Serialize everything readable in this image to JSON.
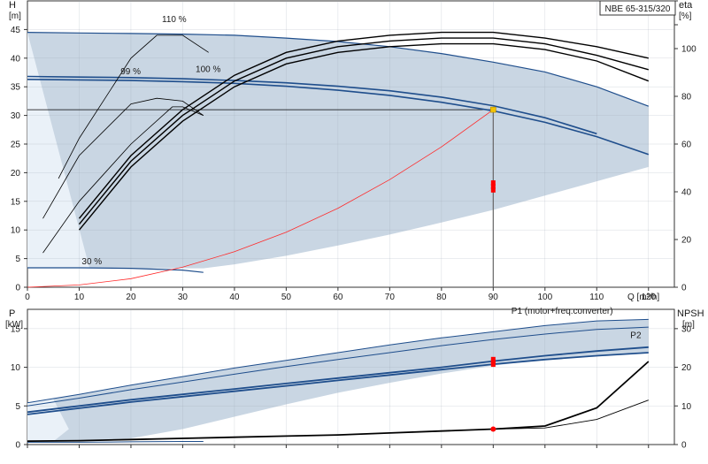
{
  "chart_data": [
    {
      "type": "line",
      "title": "",
      "model_label": "NBE 65-315/320",
      "xlabel": "Q [m³/h]",
      "ylabel_left": "H [m]",
      "ylabel_left_symbol": "H",
      "ylabel_left_unit": "[m]",
      "ylabel_right": "eta [%]",
      "ylabel_right_symbol": "eta",
      "ylabel_right_unit": "[%]",
      "xlim": [
        0,
        125
      ],
      "ylim_left": [
        0,
        50
      ],
      "ylim_right": [
        0,
        120
      ],
      "x_ticks": [
        0,
        10,
        20,
        30,
        40,
        50,
        60,
        70,
        80,
        90,
        100,
        110,
        120
      ],
      "y_ticks_left": [
        0,
        5,
        10,
        15,
        20,
        25,
        30,
        35,
        40,
        45
      ],
      "y_ticks_right": [
        0,
        20,
        40,
        60,
        80,
        100
      ],
      "grid": true,
      "duty_point": {
        "Q": 90,
        "H": 31
      },
      "operating_area_upper": [
        [
          0,
          44.5
        ],
        [
          6,
          44.5
        ],
        [
          10,
          44.4
        ],
        [
          20,
          44.3
        ],
        [
          30,
          44.2
        ],
        [
          40,
          44.0
        ],
        [
          50,
          43.5
        ],
        [
          60,
          42.9
        ],
        [
          70,
          42.0
        ],
        [
          80,
          40.8
        ],
        [
          90,
          39.3
        ],
        [
          100,
          37.6
        ],
        [
          110,
          35.0
        ],
        [
          120,
          31.6
        ],
        [
          120,
          21
        ],
        [
          110,
          18.5
        ],
        [
          100,
          16
        ],
        [
          90,
          13.5
        ],
        [
          80,
          11.3
        ],
        [
          70,
          9.2
        ],
        [
          60,
          7.3
        ],
        [
          50,
          5.5
        ],
        [
          40,
          4.0
        ],
        [
          34,
          3.3
        ],
        [
          12,
          3.3
        ]
      ],
      "series": [
        {
          "name": "110 %",
          "role": "head",
          "color": "#1f4e8c",
          "points": [
            [
              0,
              44.5
            ],
            [
              10,
              44.4
            ],
            [
              20,
              44.3
            ],
            [
              30,
              44.2
            ],
            [
              40,
              44.0
            ],
            [
              50,
              43.5
            ],
            [
              60,
              42.9
            ],
            [
              70,
              42.0
            ],
            [
              80,
              40.8
            ],
            [
              90,
              39.3
            ],
            [
              100,
              37.6
            ],
            [
              110,
              35.0
            ],
            [
              120,
              31.6
            ]
          ]
        },
        {
          "name": "99 %",
          "role": "head",
          "color": "#1f4e8c",
          "points": [
            [
              0,
              36.3
            ],
            [
              10,
              36.2
            ],
            [
              20,
              36.1
            ],
            [
              30,
              35.9
            ],
            [
              40,
              35.6
            ],
            [
              50,
              35.1
            ],
            [
              60,
              34.4
            ],
            [
              70,
              33.5
            ],
            [
              80,
              32.3
            ],
            [
              90,
              30.8
            ],
            [
              100,
              28.8
            ],
            [
              110,
              26.3
            ],
            [
              120,
              23.2
            ]
          ]
        },
        {
          "name": "100 %",
          "role": "head",
          "color": "#1f4e8c",
          "points": [
            [
              0,
              36.8
            ],
            [
              10,
              36.7
            ],
            [
              20,
              36.6
            ],
            [
              30,
              36.4
            ],
            [
              40,
              36.1
            ],
            [
              50,
              35.7
            ],
            [
              60,
              35.1
            ],
            [
              70,
              34.3
            ],
            [
              80,
              33.2
            ],
            [
              90,
              31.7
            ],
            [
              100,
              29.6
            ],
            [
              110,
              26.8
            ]
          ]
        },
        {
          "name": "30 %",
          "role": "head",
          "color": "#1f4e8c",
          "points": [
            [
              0,
              3.4
            ],
            [
              10,
              3.4
            ],
            [
              20,
              3.3
            ],
            [
              30,
              3.0
            ],
            [
              34,
              2.6
            ]
          ]
        },
        {
          "name": "",
          "role": "system_curve",
          "color": "#ff2a2a",
          "points": [
            [
              0,
              0
            ],
            [
              10,
              0.4
            ],
            [
              20,
              1.5
            ],
            [
              30,
              3.5
            ],
            [
              40,
              6.2
            ],
            [
              50,
              9.6
            ],
            [
              60,
              13.8
            ],
            [
              70,
              18.8
            ],
            [
              80,
              24.5
            ],
            [
              90,
              31
            ]
          ]
        },
        {
          "name": "",
          "role": "efficiency",
          "color": "#000000",
          "points": [
            [
              10,
              12
            ],
            [
              20,
              23
            ],
            [
              30,
              31
            ],
            [
              40,
              37
            ],
            [
              50,
              41
            ],
            [
              60,
              43
            ],
            [
              70,
              44
            ],
            [
              80,
              44.5
            ],
            [
              90,
              44.5
            ],
            [
              100,
              43.5
            ],
            [
              110,
              42
            ],
            [
              120,
              40
            ]
          ]
        },
        {
          "name": "",
          "role": "efficiency",
          "color": "#000000",
          "points": [
            [
              10,
              10
            ],
            [
              20,
              21
            ],
            [
              30,
              29
            ],
            [
              40,
              35
            ],
            [
              50,
              39
            ],
            [
              60,
              41
            ],
            [
              70,
              42
            ],
            [
              80,
              42.5
            ],
            [
              90,
              42.5
            ],
            [
              100,
              41.5
            ],
            [
              110,
              39.5
            ],
            [
              120,
              36
            ]
          ]
        },
        {
          "name": "",
          "role": "efficiency",
          "color": "#000000",
          "points": [
            [
              10,
              11
            ],
            [
              20,
              22
            ],
            [
              30,
              30
            ],
            [
              40,
              36
            ],
            [
              50,
              40
            ],
            [
              60,
              42
            ],
            [
              70,
              43
            ],
            [
              80,
              43.5
            ],
            [
              90,
              43.5
            ],
            [
              100,
              42.5
            ],
            [
              110,
              40.5
            ],
            [
              120,
              38
            ]
          ]
        },
        {
          "name": "",
          "role": "efficiency",
          "color": "#000000",
          "points": [
            [
              3,
              12
            ],
            [
              10,
              23
            ],
            [
              20,
              32
            ],
            [
              25,
              33
            ],
            [
              30,
              32.5
            ],
            [
              34,
              30
            ]
          ]
        },
        {
          "name": "",
          "role": "efficiency",
          "color": "#000000",
          "points": [
            [
              3,
              6
            ],
            [
              10,
              15
            ],
            [
              20,
              25
            ],
            [
              28,
              31.5
            ],
            [
              30,
              31.5
            ],
            [
              34,
              30
            ]
          ]
        },
        {
          "name": "",
          "role": "efficiency",
          "color": "#000000",
          "points": [
            [
              6,
              19
            ],
            [
              10,
              26
            ],
            [
              20,
              40
            ],
            [
              25,
              44
            ],
            [
              30,
              44
            ],
            [
              35,
              41
            ]
          ]
        }
      ]
    },
    {
      "type": "line",
      "title": "",
      "xlabel": "",
      "ylabel_left": "P [kW]",
      "ylabel_left_symbol": "P",
      "ylabel_left_unit": "[kW]",
      "ylabel_right": "NPSH [m]",
      "ylabel_right_symbol": "NPSH",
      "ylabel_right_unit": "[m]",
      "xlim": [
        0,
        125
      ],
      "ylim_left": [
        0,
        17.5
      ],
      "ylim_right": [
        0,
        35
      ],
      "y_ticks_left": [
        0,
        5,
        10,
        15
      ],
      "y_ticks_right": [
        0,
        10,
        20,
        30
      ],
      "grid": true,
      "operating_area_upper": [
        [
          0,
          5.4
        ],
        [
          10,
          6.5
        ],
        [
          20,
          7.7
        ],
        [
          30,
          8.8
        ],
        [
          40,
          9.9
        ],
        [
          50,
          10.9
        ],
        [
          60,
          11.9
        ],
        [
          70,
          12.9
        ],
        [
          80,
          13.8
        ],
        [
          90,
          14.6
        ],
        [
          100,
          15.4
        ],
        [
          110,
          16.0
        ],
        [
          120,
          16.2
        ]
      ],
      "operating_area_lower": [
        [
          120,
          12.0
        ],
        [
          110,
          11.6
        ],
        [
          100,
          11.0
        ],
        [
          90,
          10.2
        ],
        [
          80,
          9.2
        ],
        [
          70,
          8.0
        ],
        [
          60,
          6.7
        ],
        [
          50,
          5.2
        ],
        [
          40,
          3.6
        ],
        [
          30,
          2.0
        ],
        [
          20,
          0.8
        ],
        [
          10,
          0.4
        ],
        [
          0,
          0.4
        ]
      ],
      "series": [
        {
          "name": "P1 (motor+freq.converter)",
          "role": "power",
          "color": "#1f4e8c",
          "points": [
            [
              0,
              5.4
            ],
            [
              10,
              6.5
            ],
            [
              20,
              7.7
            ],
            [
              30,
              8.8
            ],
            [
              40,
              9.9
            ],
            [
              50,
              10.9
            ],
            [
              60,
              11.9
            ],
            [
              70,
              12.9
            ],
            [
              80,
              13.8
            ],
            [
              90,
              14.6
            ],
            [
              100,
              15.4
            ],
            [
              110,
              16.0
            ],
            [
              120,
              16.2
            ]
          ]
        },
        {
          "name": "",
          "role": "power",
          "color": "#1f4e8c",
          "points": [
            [
              0,
              5.0
            ],
            [
              10,
              6.0
            ],
            [
              20,
              7.1
            ],
            [
              30,
              8.1
            ],
            [
              40,
              9.1
            ],
            [
              50,
              10.1
            ],
            [
              60,
              11.0
            ],
            [
              70,
              11.9
            ],
            [
              80,
              12.8
            ],
            [
              90,
              13.6
            ],
            [
              100,
              14.3
            ],
            [
              110,
              14.9
            ],
            [
              120,
              15.2
            ]
          ]
        },
        {
          "name": "P2",
          "role": "power",
          "color": "#1f4e8c",
          "points": [
            [
              0,
              4.2
            ],
            [
              10,
              5.0
            ],
            [
              20,
              5.8
            ],
            [
              30,
              6.5
            ],
            [
              40,
              7.2
            ],
            [
              50,
              7.9
            ],
            [
              60,
              8.6
            ],
            [
              70,
              9.3
            ],
            [
              80,
              10.0
            ],
            [
              90,
              10.8
            ],
            [
              100,
              11.5
            ],
            [
              110,
              12.1
            ],
            [
              120,
              12.6
            ]
          ]
        },
        {
          "name": "",
          "role": "power",
          "color": "#1f4e8c",
          "points": [
            [
              0,
              3.9
            ],
            [
              10,
              4.7
            ],
            [
              20,
              5.5
            ],
            [
              30,
              6.2
            ],
            [
              40,
              6.9
            ],
            [
              50,
              7.6
            ],
            [
              60,
              8.3
            ],
            [
              70,
              9.0
            ],
            [
              80,
              9.7
            ],
            [
              90,
              10.4
            ],
            [
              100,
              11.0
            ],
            [
              110,
              11.5
            ],
            [
              120,
              11.9
            ]
          ]
        },
        {
          "name": "",
          "role": "power",
          "color": "#1f4e8c",
          "points": [
            [
              0,
              0.3
            ],
            [
              10,
              0.3
            ],
            [
              20,
              0.35
            ],
            [
              30,
              0.4
            ],
            [
              34,
              0.4
            ]
          ]
        },
        {
          "name": "",
          "role": "npsh",
          "color": "#000000",
          "points": [
            [
              0,
              0.9
            ],
            [
              10,
              1.0
            ],
            [
              20,
              1.3
            ],
            [
              30,
              1.6
            ],
            [
              40,
              1.9
            ],
            [
              50,
              2.2
            ],
            [
              60,
              2.5
            ],
            [
              70,
              3.0
            ],
            [
              80,
              3.5
            ],
            [
              90,
              4.0
            ],
            [
              100,
              4.8
            ],
            [
              110,
              9.5
            ],
            [
              120,
              21.5
            ]
          ]
        },
        {
          "name": "",
          "role": "npsh",
          "color": "#000000",
          "points": [
            [
              0,
              0.9
            ],
            [
              10,
              1.0
            ],
            [
              20,
              1.3
            ],
            [
              30,
              1.6
            ],
            [
              40,
              1.9
            ],
            [
              50,
              2.2
            ],
            [
              60,
              2.5
            ],
            [
              70,
              3.0
            ],
            [
              80,
              3.5
            ],
            [
              90,
              4.0
            ],
            [
              100,
              4.3
            ],
            [
              110,
              6.5
            ],
            [
              120,
              11.5
            ]
          ]
        }
      ]
    }
  ],
  "colors": {
    "operating_area": "#c9d6e3",
    "operating_area_light": "#eaf1f8",
    "head_curve": "#1f4e8c",
    "system_curve": "#ff2a2a",
    "duty_marker": "#ff0000",
    "duty_point_marker": "#f2c300",
    "frame": "#333333"
  }
}
